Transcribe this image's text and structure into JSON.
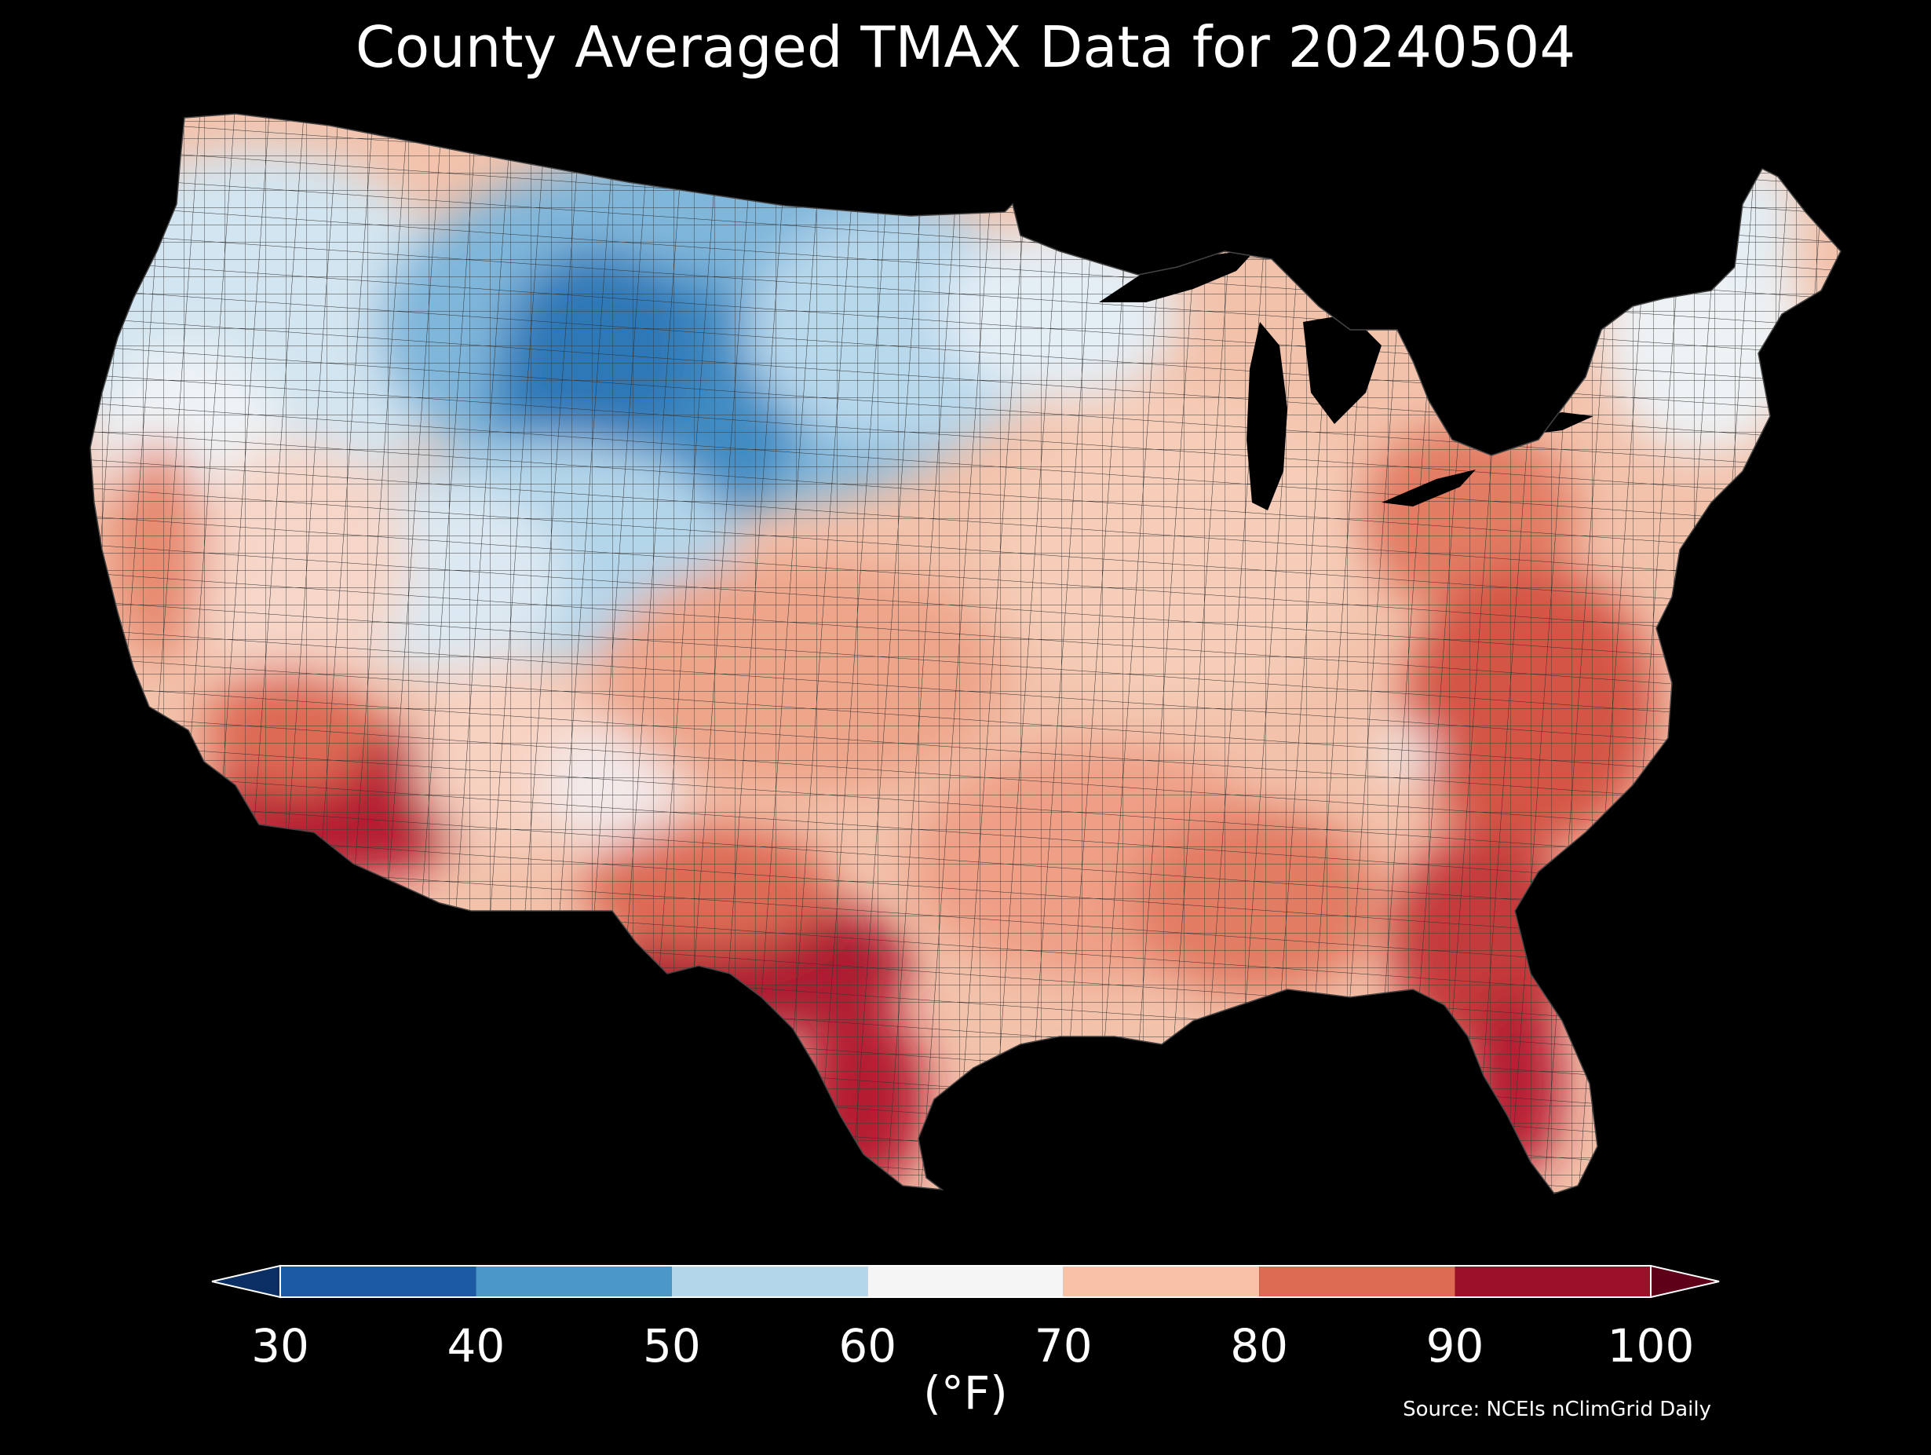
{
  "title": "County Averaged TMAX Data for 20240504",
  "colorbar": {
    "unit_label": "(°F)",
    "ticks": [
      "30",
      "40",
      "50",
      "60",
      "70",
      "80",
      "90",
      "100"
    ],
    "bins": [
      {
        "min": 30,
        "max": 40,
        "color": "#1c5aa3"
      },
      {
        "min": 40,
        "max": 50,
        "color": "#4a97c8"
      },
      {
        "min": 50,
        "max": 60,
        "color": "#b4d6ea"
      },
      {
        "min": 60,
        "max": 70,
        "color": "#f5f5f5"
      },
      {
        "min": 70,
        "max": 80,
        "color": "#f9c1a6"
      },
      {
        "min": 80,
        "max": 90,
        "color": "#dd6b54"
      },
      {
        "min": 90,
        "max": 100,
        "color": "#9a1029"
      }
    ],
    "under_color": "#0b2e64",
    "over_color": "#5e0018",
    "extend": "both"
  },
  "source": "Source: NCEIs nClimGrid Daily",
  "map": {
    "region": "Contiguous United States",
    "colors": {
      "ocean": "#000000",
      "border": "#333333",
      "cold_core": "#2f78b7",
      "cold": "#5a9fcf",
      "cool": "#b4d6ea",
      "mild": "#eef3f6",
      "warm": "#f6c4ad",
      "hot": "#e27b63",
      "very_hot": "#b51f30"
    }
  }
}
